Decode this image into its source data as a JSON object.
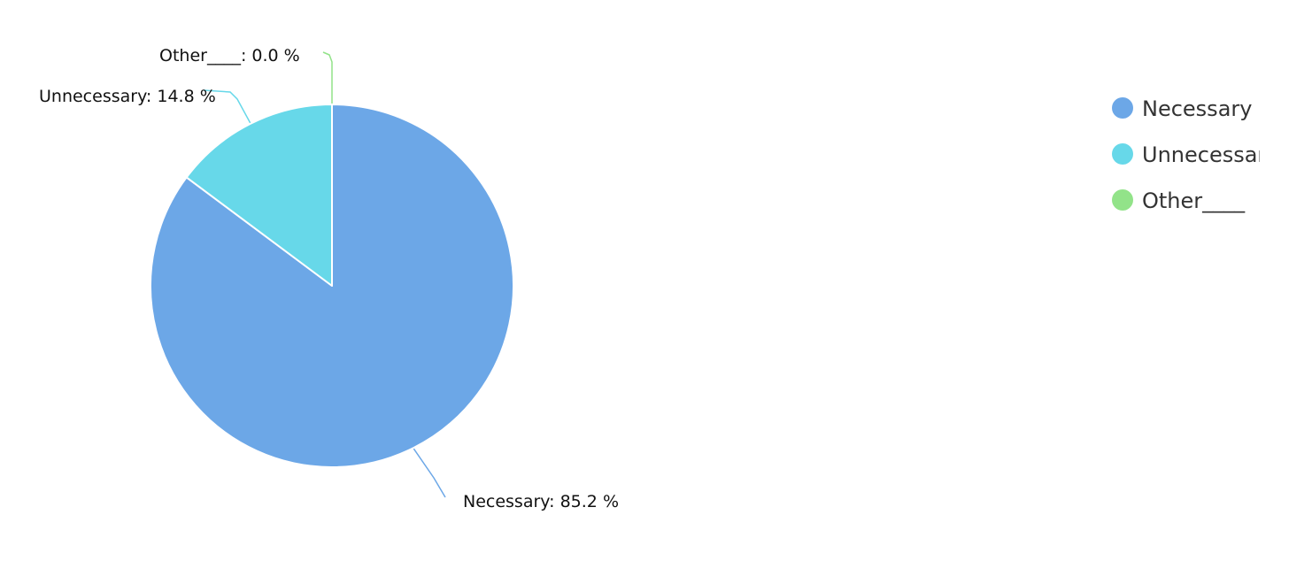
{
  "chart_data": {
    "type": "pie",
    "series": [
      {
        "values": [
          85.2,
          14.8,
          0.0
        ]
      }
    ],
    "categories": [
      "Necessary",
      "Unnecessary",
      "Other____"
    ],
    "data_labels": [
      "Necessary: 85.2 %",
      "Unnecessary: 14.8 %",
      "Other____: 0.0 %"
    ],
    "colors": [
      "#6ca7e7",
      "#67d8e9",
      "#92e389"
    ],
    "legend": {
      "position": "right",
      "items": [
        "Necessary",
        "Unnecessary",
        "Other____"
      ]
    }
  }
}
